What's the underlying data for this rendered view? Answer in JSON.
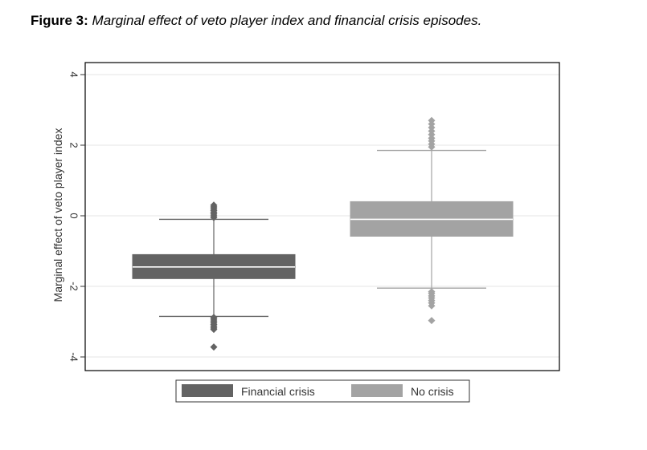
{
  "caption": {
    "label": "Figure 3:",
    "text": "Marginal effect of veto player index and financial crisis episodes."
  },
  "chart_data": {
    "type": "box",
    "title": "Figure 3: Marginal effect of veto player index and financial crisis episodes.",
    "xlabel": "",
    "ylabel": "Marginal effect of veto player index",
    "ylim": [
      -4.4,
      4.2
    ],
    "yticks": [
      -4,
      -2,
      0,
      2,
      4
    ],
    "yticklabels": [
      "-4",
      "-2",
      "0",
      "2",
      "4"
    ],
    "grid": true,
    "legend_position": "bottom",
    "series": [
      {
        "name": "Financial crisis",
        "color": "#636363",
        "q1": -1.78,
        "median": -1.45,
        "q3": -1.1,
        "whisker_low": -2.85,
        "whisker_high": -0.1,
        "outliers_low": [
          -2.88,
          -2.93,
          -2.98,
          -3.03,
          -3.08,
          -3.13,
          -3.18,
          -3.22,
          -3.72
        ],
        "outliers_high": [
          -0.05,
          0.0,
          0.05,
          0.1,
          0.15,
          0.2,
          0.25,
          0.3
        ]
      },
      {
        "name": "No crisis",
        "color": "#a3a3a3",
        "q1": -0.58,
        "median": -0.1,
        "q3": 0.4,
        "whisker_low": -2.05,
        "whisker_high": 1.85,
        "outliers_low": [
          -2.15,
          -2.2,
          -2.27,
          -2.33,
          -2.4,
          -2.47,
          -2.55,
          -2.97
        ],
        "outliers_high": [
          1.95,
          2.03,
          2.12,
          2.2,
          2.3,
          2.4,
          2.5,
          2.6,
          2.7
        ]
      }
    ]
  }
}
